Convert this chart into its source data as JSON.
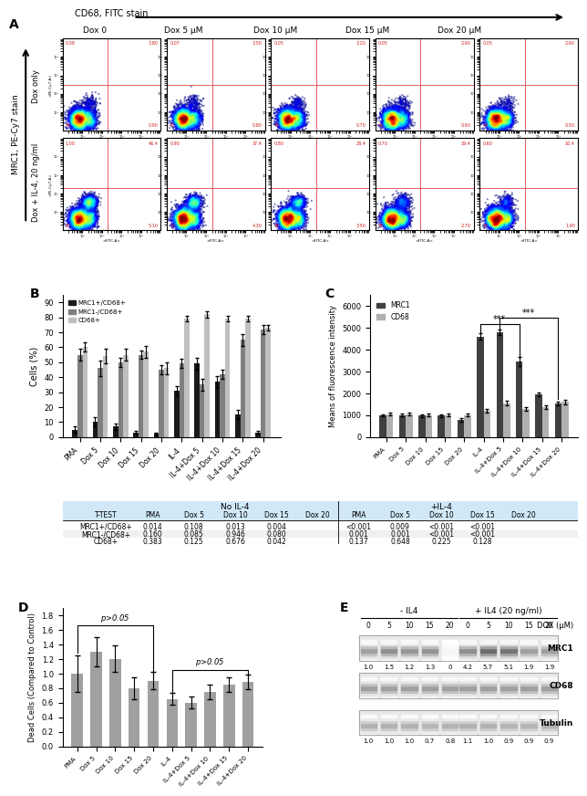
{
  "panel_A": {
    "col_labels": [
      "Dox 0",
      "Dox 5 μM",
      "Dox 10 μM",
      "Dox 15 μM",
      "Dox 20 μM"
    ],
    "row_label_top": "Dox only",
    "row_label_bot": "Dox + IL-4, 20 ng/ml",
    "x_arrow_label": "CD68, FITC stain",
    "y_arrow_label": "MRC1, PE-Cy7 stain"
  },
  "panel_B": {
    "categories": [
      "PMA",
      "Dox 5",
      "Dox 10",
      "Dox 15",
      "Dox 20",
      "IL-4",
      "IL-4+Dox 5",
      "IL-4+Dox 10",
      "IL-4+Dox 15",
      "IL-4+Dox 20"
    ],
    "MRC1pos_CD68pos": [
      5,
      10,
      7,
      3,
      2,
      31,
      49,
      37,
      15,
      3
    ],
    "MRC1neg_CD68pos": [
      55,
      46,
      50,
      55,
      45,
      49,
      35,
      42,
      65,
      72
    ],
    "CD68pos": [
      60,
      54,
      55,
      57,
      46,
      79,
      82,
      79,
      79,
      73
    ],
    "MRC1pos_CD68pos_err": [
      2,
      3,
      2,
      1,
      1,
      3,
      4,
      4,
      3,
      1
    ],
    "MRC1neg_CD68pos_err": [
      4,
      5,
      3,
      3,
      3,
      3,
      4,
      3,
      4,
      3
    ],
    "CD68pos_err": [
      3,
      5,
      4,
      4,
      4,
      2,
      2,
      2,
      2,
      2
    ],
    "ylabel": "Cells (%)",
    "ylim": [
      0,
      95
    ],
    "yticks": [
      0,
      10,
      20,
      30,
      40,
      50,
      60,
      70,
      80,
      90
    ],
    "colors": [
      "#1a1a1a",
      "#808080",
      "#c0c0c0"
    ],
    "legend_labels": [
      "MRC1+/CD68+",
      "MRC1-/CD68+",
      "CD68+"
    ]
  },
  "panel_B_table": {
    "col_headers": [
      "T-TEST",
      "PMA",
      "Dox 5",
      "Dox 10",
      "Dox 15",
      "Dox 20",
      "PMA",
      "Dox 5",
      "Dox 10",
      "Dox 15",
      "Dox 20"
    ],
    "subheader_no_IL4": "No IL-4",
    "subheader_IL4": "+IL-4",
    "row_labels": [
      "MRC1+/CD68+",
      "MRC1-/CD68+",
      "CD68+"
    ],
    "row_data": [
      [
        "0.014",
        "0.108",
        "0.013",
        "0.004",
        "<0.001",
        "0.009",
        "<0.001",
        "<0.001"
      ],
      [
        "0.160",
        "0.085",
        "0.946",
        "0.080",
        "0.001",
        "0.001",
        "<0.001",
        "<0.001"
      ],
      [
        "0.383",
        "0.125",
        "0.676",
        "0.042",
        "0.137",
        "0.648",
        "0.225",
        "0.128"
      ]
    ]
  },
  "panel_C": {
    "categories": [
      "PMA",
      "Dox 5",
      "Dox 10",
      "Dox 15",
      "Dox 20",
      "IL-4",
      "IL-4+Dox 5",
      "IL-4+Dox 10",
      "IL-4+Dox 15",
      "IL-4+Dox 20"
    ],
    "MRC1": [
      1000,
      1000,
      970,
      970,
      780,
      4600,
      4800,
      3450,
      1950,
      1550
    ],
    "CD68": [
      1050,
      1050,
      1000,
      1000,
      1000,
      1200,
      1550,
      1280,
      1380,
      1600
    ],
    "MRC1_err": [
      50,
      60,
      50,
      50,
      80,
      150,
      120,
      200,
      100,
      80
    ],
    "CD68_err": [
      60,
      70,
      60,
      60,
      60,
      80,
      100,
      90,
      90,
      100
    ],
    "ylabel": "Means of fluorescence intensity",
    "ylim": [
      0,
      6500
    ],
    "yticks": [
      0,
      1000,
      2000,
      3000,
      4000,
      5000,
      6000
    ],
    "colors": [
      "#404040",
      "#b0b0b0"
    ],
    "legend_labels": [
      "MRC1",
      "CD68"
    ]
  },
  "panel_D": {
    "categories": [
      "PMA",
      "Dox 5",
      "Dox 10",
      "Dox 15",
      "Dox 20",
      "IL-4",
      "IL-4+Dox 5",
      "IL-4+Dox 10",
      "IL-4+Dox 15",
      "IL-4+Dox 20"
    ],
    "values": [
      1.0,
      1.3,
      1.2,
      0.8,
      0.9,
      0.65,
      0.6,
      0.75,
      0.85,
      0.88
    ],
    "errors": [
      0.25,
      0.2,
      0.18,
      0.15,
      0.12,
      0.08,
      0.08,
      0.1,
      0.1,
      0.1
    ],
    "ylabel": "Dead Cells (Compared to Control)",
    "ylim": [
      0.0,
      1.9
    ],
    "yticks": [
      0.0,
      0.2,
      0.4,
      0.6,
      0.8,
      1.0,
      1.2,
      1.4,
      1.6,
      1.8
    ],
    "bar_color": "#a0a0a0"
  },
  "panel_E": {
    "dox_minus": [
      "0",
      "5",
      "10",
      "15",
      "20"
    ],
    "dox_plus": [
      "0",
      "5",
      "10",
      "15",
      "20"
    ],
    "group_label_minus": "- IL4",
    "group_label_plus": "+ IL4 (20 ng/ml)",
    "dox_row_label": "DOX (μM)",
    "row_labels": [
      "MRC1",
      "CD68",
      "Tubulin"
    ],
    "MRC1_nums_minus": [
      "1.0",
      "1.5",
      "1.2",
      "1.3",
      "0"
    ],
    "MRC1_nums_plus": [
      "4.2",
      "5.7",
      "5.1",
      "1.9",
      "1.9"
    ],
    "Tubulin_nums_minus": [
      "1.0",
      "1.0",
      "1.0",
      "0.7",
      "0.8"
    ],
    "Tubulin_nums_plus": [
      "1.1",
      "1.0",
      "0.9",
      "0.9",
      "0.9"
    ],
    "mrc1_minus_intensity": [
      0.55,
      0.65,
      0.6,
      0.62,
      0.05
    ],
    "mrc1_plus_intensity": [
      0.65,
      0.85,
      0.8,
      0.55,
      0.55
    ],
    "cd68_minus_intensity": [
      0.55,
      0.55,
      0.55,
      0.55,
      0.55
    ],
    "cd68_plus_intensity": [
      0.55,
      0.55,
      0.55,
      0.55,
      0.55
    ],
    "tub_minus_intensity": [
      0.45,
      0.45,
      0.45,
      0.42,
      0.44
    ],
    "tub_plus_intensity": [
      0.45,
      0.45,
      0.43,
      0.43,
      0.43
    ]
  }
}
